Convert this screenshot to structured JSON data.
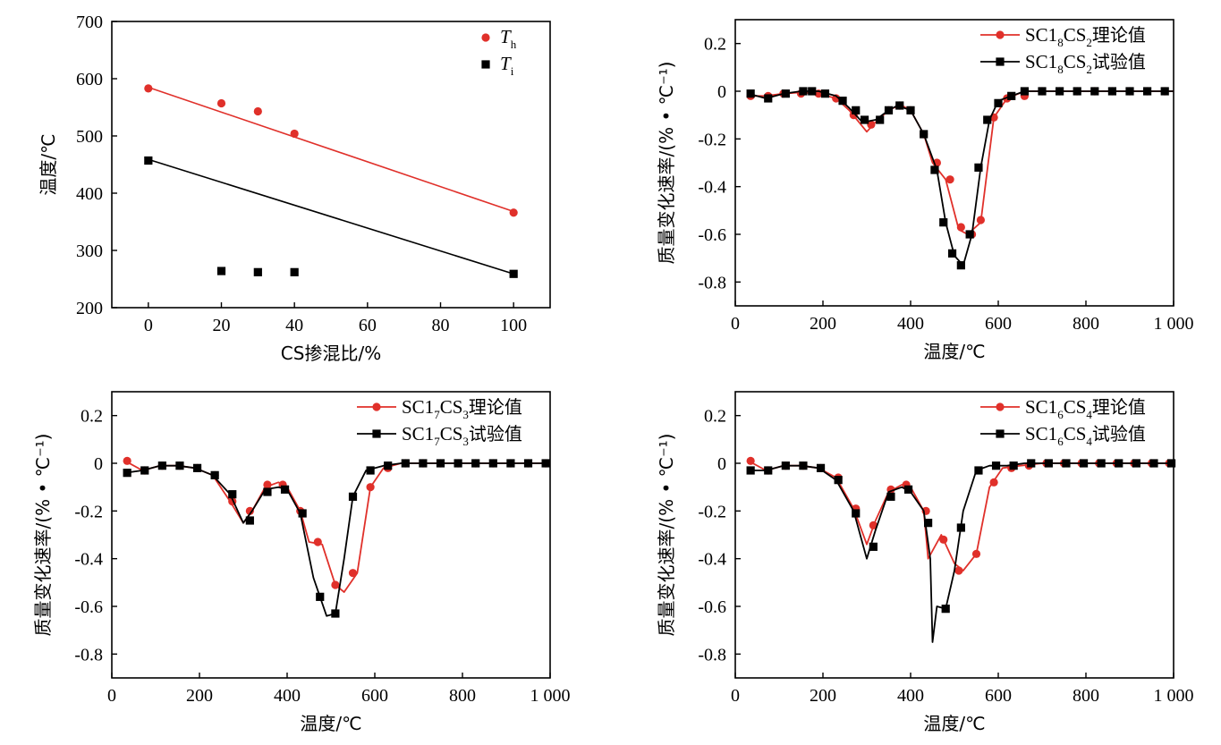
{
  "colors": {
    "red": "#e0302a",
    "black": "#000000"
  },
  "chart_data": [
    {
      "type": "scatter",
      "xlabel": "CS掺混比/%",
      "ylabel": "温度/℃",
      "xlim": [
        -10,
        110
      ],
      "ylim": [
        200,
        700
      ],
      "xticks": [
        "0",
        "20",
        "40",
        "60",
        "80",
        "100"
      ],
      "yticks": [
        "200",
        "300",
        "400",
        "500",
        "600",
        "700"
      ],
      "legend_position": "top-right",
      "series": [
        {
          "name": "T",
          "sub": "h",
          "color": "#e0302a",
          "marker": "circle",
          "x": [
            0,
            20,
            30,
            40,
            100
          ],
          "y": [
            583,
            557,
            543,
            504,
            366
          ],
          "fit": {
            "x": [
              0,
              100
            ],
            "y": [
              585,
              368
            ]
          }
        },
        {
          "name": "T",
          "sub": "i",
          "color": "#000000",
          "marker": "square",
          "x": [
            0,
            20,
            30,
            40,
            100
          ],
          "y": [
            457,
            264,
            262,
            262,
            259
          ],
          "fit": {
            "x": [
              0,
              100
            ],
            "y": [
              459,
              259
            ]
          }
        }
      ]
    },
    {
      "type": "line",
      "xlabel": "温度/℃",
      "ylabel": "质量变化速率/(% • ℃⁻¹)",
      "xlim": [
        0,
        1000
      ],
      "ylim": [
        -0.9,
        0.3
      ],
      "xticks": [
        "0",
        "200",
        "400",
        "600",
        "800",
        "1 000"
      ],
      "yticks": [
        "-0.8",
        "-0.6",
        "-0.4",
        "-0.2",
        "0",
        "0.2"
      ],
      "legend_position": "top-right",
      "series": [
        {
          "name": "SC1",
          "s1": "8",
          "mid": "CS",
          "s2": "2",
          "suffix": "理论值",
          "color": "#e0302a",
          "marker": "circle",
          "x": [
            30,
            70,
            110,
            150,
            190,
            230,
            260,
            300,
            330,
            360,
            380,
            400,
            430,
            450,
            480,
            510,
            530,
            560,
            590,
            620,
            660,
            700,
            750,
            800,
            850,
            900,
            950,
            1000
          ],
          "y": [
            -0.02,
            -0.02,
            -0.01,
            -0.005,
            -0.01,
            -0.03,
            -0.08,
            -0.17,
            -0.11,
            -0.07,
            -0.06,
            -0.08,
            -0.18,
            -0.3,
            -0.37,
            -0.58,
            -0.6,
            -0.55,
            -0.11,
            -0.03,
            0.0,
            0.0,
            0.0,
            0.0,
            0.0,
            0.0,
            0.0,
            0.0
          ],
          "markers_x": [
            35,
            75,
            110,
            150,
            190,
            230,
            270,
            310,
            350,
            375,
            400,
            430,
            460,
            490,
            515,
            540,
            560,
            590,
            620,
            660,
            700,
            740,
            780,
            820,
            860,
            900,
            940,
            980
          ],
          "markers_y": [
            -0.02,
            -0.02,
            -0.01,
            -0.01,
            -0.01,
            -0.03,
            -0.1,
            -0.14,
            -0.08,
            -0.06,
            -0.08,
            -0.18,
            -0.3,
            -0.37,
            -0.57,
            -0.6,
            -0.54,
            -0.11,
            -0.03,
            -0.02,
            0.0,
            0.0,
            0.0,
            0.0,
            0.0,
            0.0,
            0.0,
            0.0
          ]
        },
        {
          "name": "SC1",
          "s1": "8",
          "mid": "CS",
          "s2": "2",
          "suffix": "试验值",
          "color": "#000000",
          "marker": "square",
          "x": [
            30,
            70,
            110,
            150,
            190,
            230,
            260,
            290,
            320,
            350,
            370,
            400,
            430,
            460,
            480,
            500,
            520,
            540,
            560,
            580,
            600,
            630,
            660,
            700,
            750,
            800,
            850,
            900,
            950,
            1000
          ],
          "y": [
            -0.01,
            -0.03,
            -0.01,
            0.0,
            0.0,
            -0.02,
            -0.07,
            -0.13,
            -0.12,
            -0.08,
            -0.06,
            -0.08,
            -0.18,
            -0.33,
            -0.55,
            -0.69,
            -0.73,
            -0.6,
            -0.32,
            -0.12,
            -0.04,
            -0.02,
            0.0,
            0.0,
            0.0,
            0.0,
            0.0,
            0.0,
            0.0,
            0.0
          ],
          "markers_x": [
            35,
            75,
            115,
            155,
            175,
            205,
            245,
            275,
            295,
            330,
            350,
            375,
            400,
            430,
            455,
            475,
            495,
            515,
            535,
            555,
            575,
            600,
            630,
            660,
            700,
            740,
            780,
            820,
            860,
            900,
            940,
            980
          ],
          "markers_y": [
            -0.01,
            -0.03,
            -0.01,
            0.0,
            0.0,
            -0.01,
            -0.04,
            -0.08,
            -0.12,
            -0.12,
            -0.08,
            -0.06,
            -0.08,
            -0.18,
            -0.33,
            -0.55,
            -0.68,
            -0.73,
            -0.6,
            -0.32,
            -0.12,
            -0.05,
            -0.02,
            0.0,
            0.0,
            0.0,
            0.0,
            0.0,
            0.0,
            0.0,
            0.0,
            0.0
          ]
        }
      ]
    },
    {
      "type": "line",
      "xlabel": "温度/℃",
      "ylabel": "质量变化速率/(% • ℃⁻¹)",
      "xlim": [
        0,
        1000
      ],
      "ylim": [
        -0.9,
        0.3
      ],
      "xticks": [
        "0",
        "200",
        "400",
        "600",
        "800",
        "1 000"
      ],
      "yticks": [
        "-0.8",
        "-0.6",
        "-0.4",
        "-0.2",
        "0",
        "0.2"
      ],
      "legend_position": "top-right",
      "series": [
        {
          "name": "SC1",
          "s1": "7",
          "mid": "CS",
          "s2": "3",
          "suffix": "理论值",
          "color": "#e0302a",
          "marker": "circle",
          "x": [
            30,
            70,
            110,
            150,
            190,
            230,
            270,
            300,
            320,
            350,
            380,
            400,
            430,
            450,
            480,
            510,
            530,
            560,
            590,
            620,
            660,
            700,
            750,
            800,
            850,
            900,
            950,
            1000
          ],
          "y": [
            0.01,
            -0.03,
            -0.01,
            -0.01,
            -0.02,
            -0.05,
            -0.16,
            -0.25,
            -0.2,
            -0.1,
            -0.08,
            -0.1,
            -0.2,
            -0.33,
            -0.34,
            -0.51,
            -0.54,
            -0.46,
            -0.1,
            -0.02,
            0.0,
            0.0,
            0.0,
            0.0,
            0.0,
            0.0,
            0.0,
            0.0
          ],
          "markers_x": [
            35,
            75,
            115,
            155,
            195,
            235,
            275,
            315,
            355,
            390,
            430,
            470,
            510,
            550,
            590,
            630,
            670,
            710,
            750,
            790,
            830,
            870,
            910,
            950,
            990
          ],
          "markers_y": [
            0.01,
            -0.03,
            -0.01,
            -0.01,
            -0.02,
            -0.05,
            -0.16,
            -0.2,
            -0.09,
            -0.09,
            -0.2,
            -0.33,
            -0.51,
            -0.46,
            -0.1,
            -0.02,
            0.0,
            0.0,
            0.0,
            0.0,
            0.0,
            0.0,
            0.0,
            0.0,
            0.0
          ]
        },
        {
          "name": "SC1",
          "s1": "7",
          "mid": "CS",
          "s2": "3",
          "suffix": "试验值",
          "color": "#000000",
          "marker": "square",
          "x": [
            30,
            70,
            110,
            150,
            190,
            230,
            270,
            300,
            320,
            350,
            380,
            400,
            430,
            460,
            490,
            510,
            530,
            550,
            580,
            620,
            660,
            700,
            750,
            800,
            850,
            900,
            950,
            1000
          ],
          "y": [
            -0.04,
            -0.03,
            -0.01,
            -0.01,
            -0.02,
            -0.05,
            -0.13,
            -0.25,
            -0.2,
            -0.11,
            -0.1,
            -0.11,
            -0.21,
            -0.48,
            -0.64,
            -0.63,
            -0.4,
            -0.14,
            -0.03,
            -0.01,
            0.0,
            0.0,
            0.0,
            0.0,
            0.0,
            0.0,
            0.0,
            0.0
          ],
          "markers_x": [
            35,
            75,
            115,
            155,
            195,
            235,
            275,
            315,
            355,
            395,
            435,
            475,
            510,
            550,
            590,
            630,
            670,
            710,
            750,
            790,
            830,
            870,
            910,
            950,
            990
          ],
          "markers_y": [
            -0.04,
            -0.03,
            -0.01,
            -0.01,
            -0.02,
            -0.05,
            -0.13,
            -0.24,
            -0.12,
            -0.11,
            -0.21,
            -0.56,
            -0.63,
            -0.14,
            -0.03,
            -0.01,
            0.0,
            0.0,
            0.0,
            0.0,
            0.0,
            0.0,
            0.0,
            0.0,
            0.0
          ]
        }
      ]
    },
    {
      "type": "line",
      "xlabel": "温度/℃",
      "ylabel": "质量变化速率/(% • ℃⁻¹)",
      "xlim": [
        0,
        1000
      ],
      "ylim": [
        -0.9,
        0.3
      ],
      "xticks": [
        "0",
        "200",
        "400",
        "600",
        "800",
        "1 000"
      ],
      "yticks": [
        "-0.8",
        "-0.6",
        "-0.4",
        "-0.2",
        "0",
        "0.2"
      ],
      "legend_position": "top-right",
      "series": [
        {
          "name": "SC1",
          "s1": "6",
          "mid": "CS",
          "s2": "4",
          "suffix": "理论值",
          "color": "#e0302a",
          "marker": "circle",
          "x": [
            30,
            70,
            110,
            150,
            190,
            230,
            270,
            300,
            320,
            350,
            380,
            400,
            430,
            440,
            470,
            500,
            520,
            550,
            580,
            610,
            650,
            700,
            750,
            800,
            850,
            900,
            950,
            1000
          ],
          "y": [
            0.01,
            -0.03,
            -0.01,
            -0.01,
            -0.02,
            -0.06,
            -0.19,
            -0.34,
            -0.24,
            -0.12,
            -0.09,
            -0.1,
            -0.2,
            -0.4,
            -0.3,
            -0.42,
            -0.45,
            -0.38,
            -0.1,
            -0.02,
            -0.01,
            0.0,
            0.0,
            0.0,
            0.0,
            0.0,
            0.0,
            0.0
          ],
          "markers_x": [
            35,
            75,
            115,
            155,
            195,
            235,
            275,
            315,
            355,
            390,
            435,
            475,
            510,
            550,
            590,
            630,
            670,
            710,
            750,
            790,
            830,
            870,
            910,
            950,
            990
          ],
          "markers_y": [
            0.01,
            -0.03,
            -0.01,
            -0.01,
            -0.02,
            -0.06,
            -0.19,
            -0.26,
            -0.11,
            -0.09,
            -0.2,
            -0.32,
            -0.45,
            -0.38,
            -0.08,
            -0.02,
            -0.01,
            0.0,
            0.0,
            0.0,
            0.0,
            0.0,
            0.0,
            0.0,
            0.0
          ]
        },
        {
          "name": "SC1",
          "s1": "6",
          "mid": "CS",
          "s2": "4",
          "suffix": "试验值",
          "color": "#000000",
          "marker": "square",
          "x": [
            30,
            70,
            110,
            150,
            190,
            230,
            270,
            300,
            320,
            350,
            380,
            400,
            430,
            445,
            450,
            460,
            480,
            500,
            520,
            550,
            580,
            620,
            660,
            700,
            750,
            800,
            850,
            900,
            950,
            1000
          ],
          "y": [
            -0.03,
            -0.03,
            -0.01,
            -0.01,
            -0.02,
            -0.07,
            -0.2,
            -0.4,
            -0.28,
            -0.12,
            -0.1,
            -0.12,
            -0.2,
            -0.4,
            -0.75,
            -0.6,
            -0.61,
            -0.45,
            -0.2,
            -0.03,
            -0.01,
            -0.01,
            0.0,
            0.0,
            0.0,
            0.0,
            0.0,
            0.0,
            0.0,
            0.0
          ],
          "markers_x": [
            35,
            75,
            115,
            155,
            195,
            235,
            275,
            315,
            355,
            395,
            440,
            480,
            515,
            555,
            595,
            635,
            675,
            715,
            755,
            795,
            835,
            875,
            915,
            955,
            995
          ],
          "markers_y": [
            -0.03,
            -0.03,
            -0.01,
            -0.01,
            -0.02,
            -0.07,
            -0.21,
            -0.35,
            -0.14,
            -0.11,
            -0.25,
            -0.61,
            -0.27,
            -0.03,
            -0.01,
            -0.01,
            0.0,
            0.0,
            0.0,
            0.0,
            0.0,
            0.0,
            0.0,
            0.0,
            0.0
          ]
        }
      ]
    }
  ]
}
